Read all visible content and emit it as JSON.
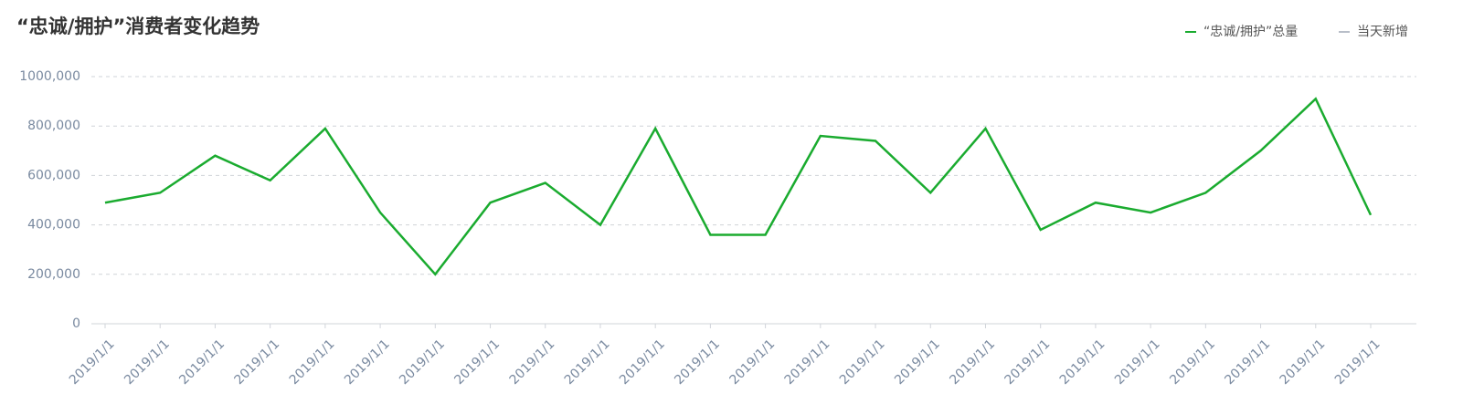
{
  "chart_data": {
    "type": "line",
    "title": "“忠诚/拥护”消费者变化趋势",
    "categories": [
      "2019/1/1",
      "2019/1/1",
      "2019/1/1",
      "2019/1/1",
      "2019/1/1",
      "2019/1/1",
      "2019/1/1",
      "2019/1/1",
      "2019/1/1",
      "2019/1/1",
      "2019/1/1",
      "2019/1/1",
      "2019/1/1",
      "2019/1/1",
      "2019/1/1",
      "2019/1/1",
      "2019/1/1",
      "2019/1/1",
      "2019/1/1",
      "2019/1/1",
      "2019/1/1",
      "2019/1/1",
      "2019/1/1",
      "2019/1/1"
    ],
    "series": [
      {
        "name": "“忠诚/拥护”总量",
        "color": "#1aab2f",
        "values": [
          490000,
          530000,
          680000,
          580000,
          790000,
          450000,
          200000,
          490000,
          570000,
          400000,
          790000,
          360000,
          360000,
          760000,
          740000,
          530000,
          790000,
          380000,
          490000,
          450000,
          530000,
          700000,
          910000,
          440000
        ]
      },
      {
        "name": "当天新增",
        "color": "#b8bec8",
        "values": [
          null,
          null,
          null,
          null,
          null,
          null,
          null,
          null,
          null,
          null,
          null,
          null,
          null,
          null,
          null,
          null,
          null,
          null,
          null,
          null,
          null,
          null,
          null,
          null
        ]
      }
    ],
    "ylim": [
      0,
      1000000
    ],
    "yticks": [
      0,
      {
        "value": 200000,
        "label": "200,000"
      },
      {
        "value": 400000,
        "label": "400,000"
      },
      {
        "value": 600000,
        "label": "600,000"
      },
      {
        "value": 800000,
        "label": "800,000"
      },
      {
        "value": 1000000,
        "label": "1000,000"
      }
    ],
    "grid": true
  }
}
